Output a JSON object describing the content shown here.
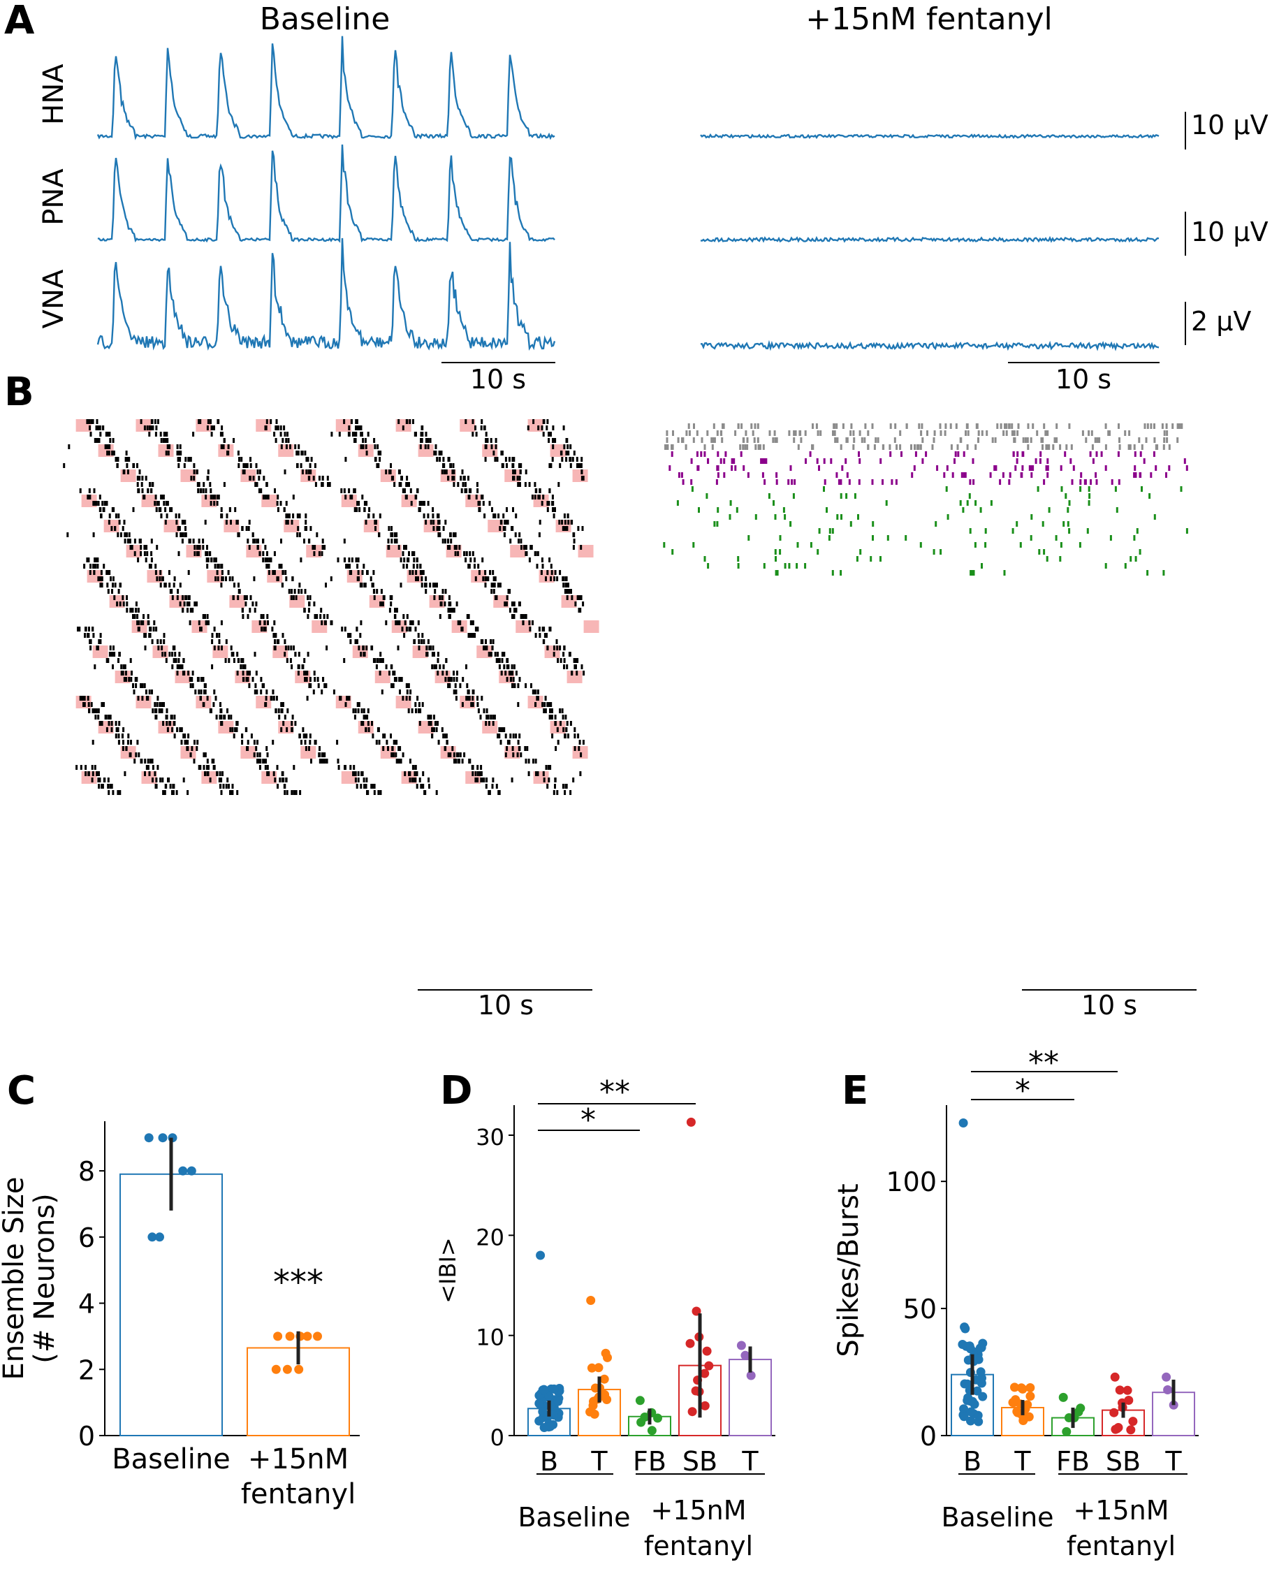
{
  "panel_labels": {
    "a": "A",
    "b": "B",
    "c": "C",
    "d": "D",
    "e": "E"
  },
  "colors": {
    "trace": "#1f77b4",
    "raster": "#000000",
    "burst_shading": "#f7b6b6",
    "gray": "#8c8c8c",
    "purple": "#8b008b",
    "green": "#1a8f1a",
    "cat_B": "#1f77b4",
    "cat_T": "#ff7f0e",
    "cat_FB": "#2ca02c",
    "cat_SB": "#d62728",
    "cat_T2": "#9467bd"
  },
  "panel_a": {
    "title_left": "Baseline",
    "title_right": "+15nM fentanyl",
    "channels": [
      "HNA",
      "PNA",
      "VNA"
    ],
    "scale_bars": [
      "10 µV",
      "10 µV",
      "2 µV"
    ],
    "time_bar_left": "10 s",
    "time_bar_right": "10 s"
  },
  "panel_b": {
    "time_bar_left": "10 s",
    "time_bar_right": "10 s"
  },
  "panel_c": {
    "xlabels": [
      "Baseline",
      "+15nM",
      "fentanyl"
    ],
    "significance": "***"
  },
  "panel_d": {
    "group_left": "Baseline",
    "group_right": [
      "+15nM",
      "fentanyl"
    ],
    "sig_short": "*",
    "sig_long": "**"
  },
  "panel_e": {
    "group_left": "Baseline",
    "group_right": [
      "+15nM",
      "fentanyl"
    ],
    "sig_short": "*",
    "sig_long": "**"
  },
  "chart_data": [
    {
      "panel": "C",
      "type": "bar",
      "categories": [
        "Baseline",
        "+15nM fentanyl"
      ],
      "values": [
        7.9,
        2.65
      ],
      "errors": [
        1.1,
        0.5
      ],
      "points": [
        [
          9,
          9,
          9,
          8,
          8,
          6,
          6
        ],
        [
          3,
          3,
          3,
          3,
          3,
          2,
          2,
          2
        ]
      ],
      "ylabel": "Ensemble Size\n(# Neurons)",
      "yticks": [
        0,
        2,
        4,
        6,
        8
      ],
      "ylim": [
        0,
        9.5
      ]
    },
    {
      "panel": "D",
      "type": "bar",
      "categories": [
        "B",
        "T",
        "FB",
        "SB",
        "T"
      ],
      "values": [
        2.7,
        4.6,
        1.9,
        7.0,
        7.6
      ],
      "errors": [
        0.8,
        1.3,
        0.8,
        5.2,
        1.3
      ],
      "ylabel": "<IBI>",
      "yticks": [
        0,
        10,
        20,
        30
      ],
      "ylim": [
        0,
        33
      ]
    },
    {
      "panel": "E",
      "type": "bar",
      "categories": [
        "B",
        "T",
        "FB",
        "SB",
        "T"
      ],
      "values": [
        24,
        11,
        7,
        10,
        17
      ],
      "errors": [
        8,
        3,
        4,
        3,
        5
      ],
      "ylabel": "Spikes/Burst",
      "yticks": [
        0,
        50,
        100
      ],
      "ylim": [
        0,
        130
      ]
    }
  ]
}
